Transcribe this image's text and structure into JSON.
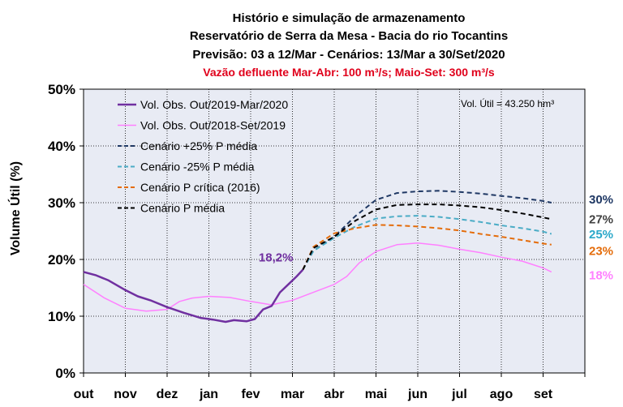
{
  "chart_data": {
    "type": "line",
    "title_lines": [
      "Histório e simulação de armazenamento",
      "Reservatório de Serra da Mesa - Bacia do rio Tocantins",
      "Previsão: 03 a 12/Mar - Cenários: 13/Mar a 30/Set/2020"
    ],
    "subtitle": "Vazão defluente Mar-Abr: 100 m³/s; Maio-Set: 300 m³/s",
    "ylabel": "Volume Útil (%)",
    "ylim": [
      0,
      50
    ],
    "yticks": [
      "0%",
      "10%",
      "20%",
      "30%",
      "40%",
      "50%"
    ],
    "xlim": [
      0,
      12
    ],
    "categories": [
      "out",
      "nov",
      "dez",
      "jan",
      "fev",
      "mar",
      "abr",
      "mai",
      "jun",
      "jul",
      "ago",
      "set"
    ],
    "note": "Vol. Útil  = 43.250 hm³",
    "annotation": {
      "text": "18,2%",
      "x": 4.8,
      "y": 18.2,
      "color": "#7030a0"
    },
    "grid": true,
    "legend_position": "top-left",
    "colors": {
      "plot_background": "#e8ebf4",
      "grid": "#000000"
    },
    "series": [
      {
        "name": "Vol. Obs. Out/2019-Mar/2020",
        "color": "#7030a0",
        "dash": "solid",
        "width": 2.5,
        "points": [
          [
            0,
            17.8
          ],
          [
            0.3,
            17.2
          ],
          [
            0.6,
            16.3
          ],
          [
            1.0,
            14.6
          ],
          [
            1.3,
            13.5
          ],
          [
            1.6,
            12.8
          ],
          [
            2.0,
            11.6
          ],
          [
            2.4,
            10.6
          ],
          [
            2.8,
            9.7
          ],
          [
            3.1,
            9.4
          ],
          [
            3.4,
            9.0
          ],
          [
            3.6,
            9.3
          ],
          [
            3.9,
            9.1
          ],
          [
            4.1,
            9.5
          ],
          [
            4.3,
            11.2
          ],
          [
            4.5,
            11.8
          ],
          [
            4.7,
            14.2
          ],
          [
            4.9,
            15.6
          ],
          [
            5.1,
            17.0
          ],
          [
            5.25,
            18.2
          ]
        ]
      },
      {
        "name": "Vol. Obs. Out/2018-Set/2019",
        "color": "#ff80ff",
        "dash": "solid",
        "width": 1.5,
        "points": [
          [
            0,
            15.6
          ],
          [
            0.5,
            13.2
          ],
          [
            1.0,
            11.4
          ],
          [
            1.5,
            10.9
          ],
          [
            2.0,
            11.2
          ],
          [
            2.3,
            12.6
          ],
          [
            2.6,
            13.2
          ],
          [
            3.0,
            13.5
          ],
          [
            3.5,
            13.3
          ],
          [
            4.0,
            12.6
          ],
          [
            4.5,
            12.0
          ],
          [
            5.0,
            12.8
          ],
          [
            5.5,
            14.2
          ],
          [
            6.0,
            15.6
          ],
          [
            6.3,
            17.0
          ],
          [
            6.6,
            19.4
          ],
          [
            7.0,
            21.4
          ],
          [
            7.5,
            22.6
          ],
          [
            8.0,
            22.9
          ],
          [
            8.5,
            22.5
          ],
          [
            9.0,
            21.8
          ],
          [
            9.5,
            21.2
          ],
          [
            10.0,
            20.4
          ],
          [
            10.5,
            19.7
          ],
          [
            11.0,
            18.5
          ],
          [
            11.2,
            17.8
          ]
        ]
      },
      {
        "name": "Cenário +25% P média",
        "color": "#1f3864",
        "dash": "6,4",
        "width": 2,
        "points": [
          [
            5.25,
            18.2
          ],
          [
            5.5,
            21.5
          ],
          [
            6.0,
            24.0
          ],
          [
            6.5,
            27.6
          ],
          [
            7.0,
            30.5
          ],
          [
            7.5,
            31.7
          ],
          [
            8.0,
            32.0
          ],
          [
            8.5,
            32.1
          ],
          [
            9.0,
            31.9
          ],
          [
            9.5,
            31.6
          ],
          [
            10.0,
            31.2
          ],
          [
            10.5,
            30.8
          ],
          [
            11.0,
            30.3
          ],
          [
            11.2,
            30.0
          ]
        ]
      },
      {
        "name": "Cenário -25% P média",
        "color": "#4bacc6",
        "dash": "6,4",
        "width": 2,
        "points": [
          [
            5.25,
            18.2
          ],
          [
            5.5,
            21.5
          ],
          [
            6.0,
            23.8
          ],
          [
            6.5,
            25.8
          ],
          [
            7.0,
            27.2
          ],
          [
            7.5,
            27.6
          ],
          [
            8.0,
            27.7
          ],
          [
            8.5,
            27.5
          ],
          [
            9.0,
            27.1
          ],
          [
            9.5,
            26.6
          ],
          [
            10.0,
            26.0
          ],
          [
            10.5,
            25.5
          ],
          [
            11.0,
            24.9
          ],
          [
            11.2,
            24.5
          ]
        ]
      },
      {
        "name": "Cenário P crítica (2016)",
        "color": "#e46c0a",
        "dash": "6,4",
        "width": 2,
        "points": [
          [
            5.25,
            18.2
          ],
          [
            5.5,
            22.2
          ],
          [
            6.0,
            24.6
          ],
          [
            6.5,
            25.5
          ],
          [
            7.0,
            26.1
          ],
          [
            7.5,
            26.0
          ],
          [
            8.0,
            25.8
          ],
          [
            8.5,
            25.5
          ],
          [
            9.0,
            25.1
          ],
          [
            9.5,
            24.5
          ],
          [
            10.0,
            24.0
          ],
          [
            10.5,
            23.4
          ],
          [
            11.0,
            22.8
          ],
          [
            11.2,
            22.6
          ]
        ]
      },
      {
        "name": "Cenário P média",
        "color": "#000000",
        "dash": "6,4",
        "width": 2,
        "points": [
          [
            5.25,
            18.2
          ],
          [
            5.5,
            22.0
          ],
          [
            6.0,
            24.0
          ],
          [
            6.5,
            26.8
          ],
          [
            7.0,
            28.8
          ],
          [
            7.5,
            29.6
          ],
          [
            8.0,
            29.7
          ],
          [
            8.5,
            29.7
          ],
          [
            9.0,
            29.5
          ],
          [
            9.5,
            29.2
          ],
          [
            10.0,
            28.7
          ],
          [
            10.5,
            28.1
          ],
          [
            11.0,
            27.4
          ],
          [
            11.2,
            27.1
          ]
        ]
      }
    ],
    "end_labels": [
      {
        "text": "30%",
        "color": "#1f3864",
        "y": 30.6
      },
      {
        "text": "27%",
        "color": "#404040",
        "y": 27.1
      },
      {
        "text": "25%",
        "color": "#2ba8c9",
        "y": 24.4
      },
      {
        "text": "23%",
        "color": "#e46c0a",
        "y": 21.5
      },
      {
        "text": "18%",
        "color": "#ff80ff",
        "y": 17.2
      }
    ]
  }
}
